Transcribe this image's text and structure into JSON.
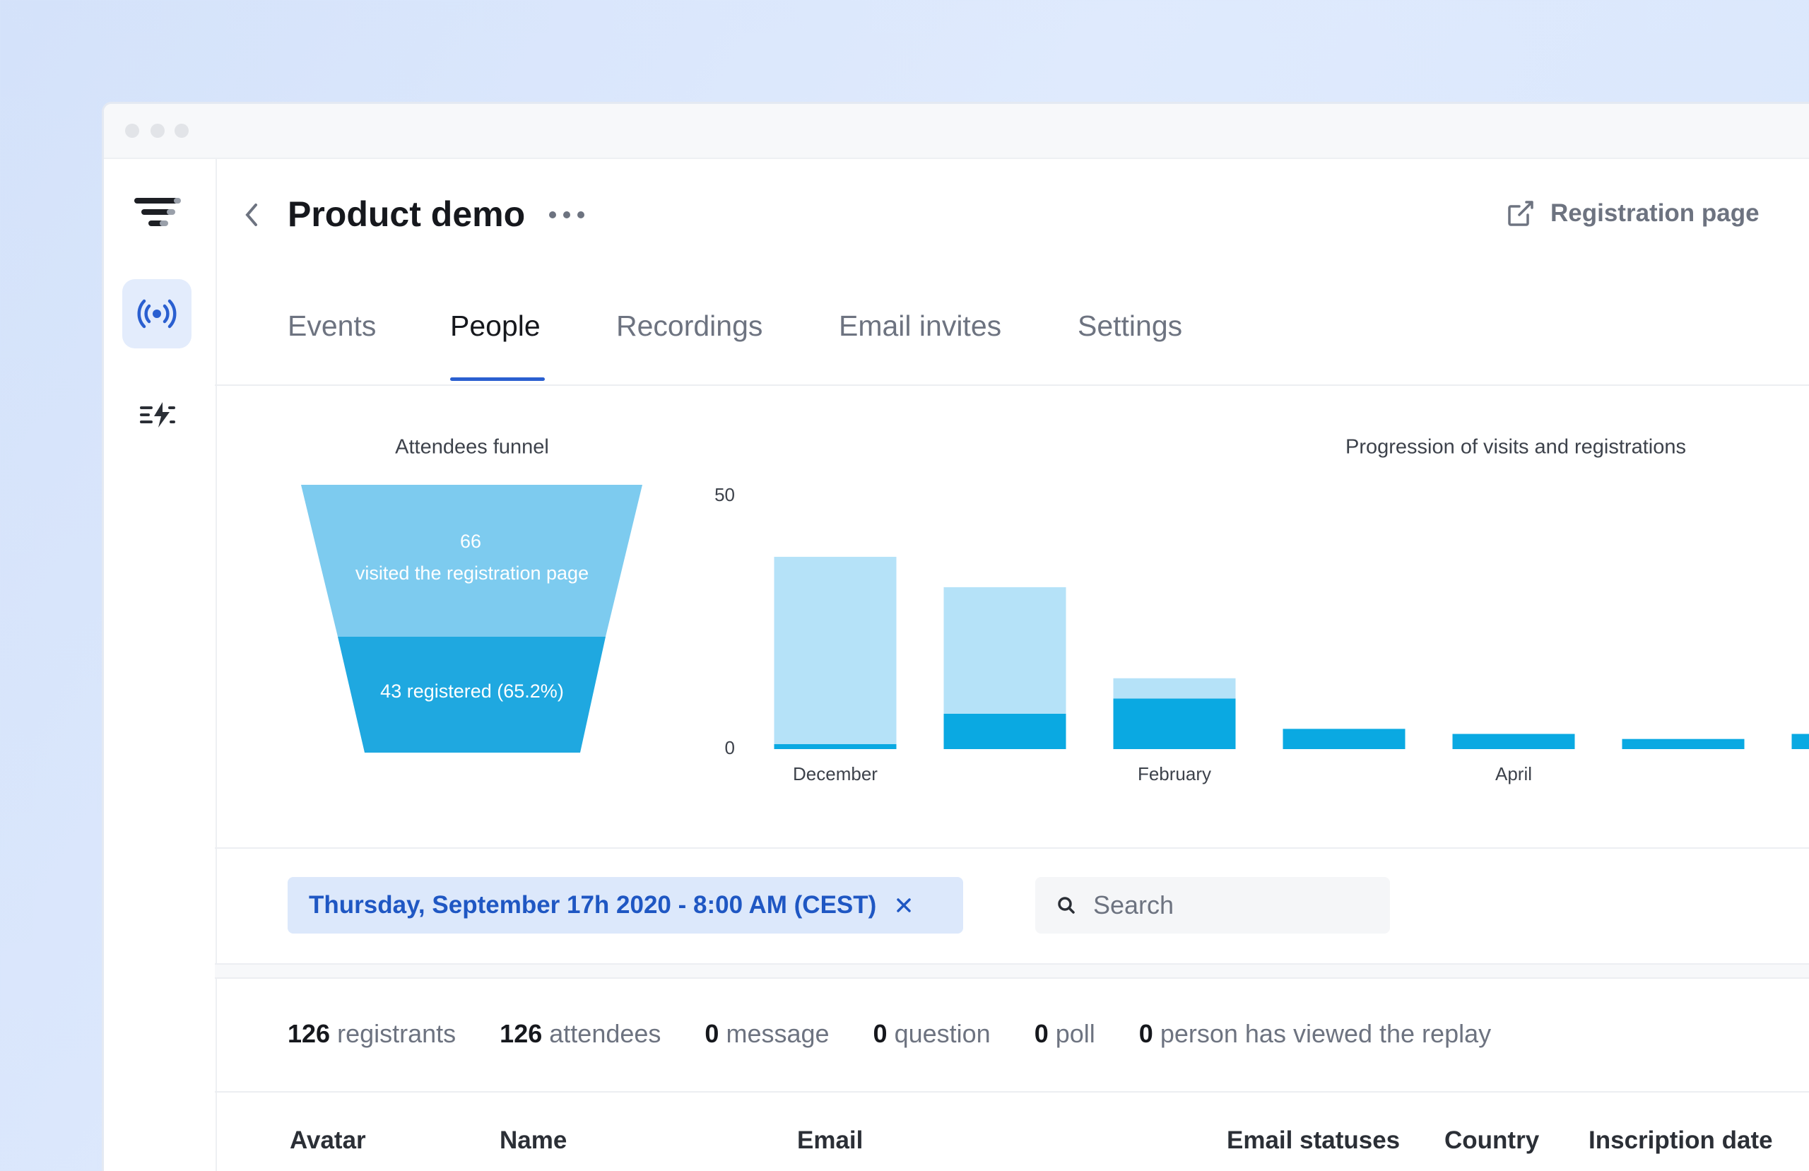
{
  "header": {
    "title": "Product demo",
    "link": "Registration page"
  },
  "tabs": [
    "Events",
    "People",
    "Recordings",
    "Email invites",
    "Settings"
  ],
  "funnel": {
    "title": "Attendees funnel",
    "stages": [
      {
        "value": 66,
        "label": "visited the registration page"
      },
      {
        "label": "43 registered (65.2%)"
      }
    ]
  },
  "chart_data": {
    "type": "bar",
    "stacked": true,
    "title": "Progression of visits and registrations",
    "categories": [
      "December",
      null,
      "February",
      null,
      "April",
      null,
      null
    ],
    "series": [
      {
        "color": "#0aa9e2",
        "values": [
          1,
          7,
          10,
          4,
          3,
          2,
          3
        ]
      },
      {
        "color": "#b5e2f8",
        "values": [
          37,
          25,
          4,
          0,
          0,
          0,
          0
        ]
      }
    ],
    "ylim": [
      0,
      50
    ],
    "yticks": [
      0,
      50
    ],
    "grid": false
  },
  "filter": {
    "date": "Thursday, September 17h 2020 - 8:00 AM (CEST)",
    "search": "Search"
  },
  "stats": [
    {
      "count": 126,
      "label": "registrants"
    },
    {
      "count": 126,
      "label": "attendees"
    },
    {
      "count": 0,
      "label": "message"
    },
    {
      "count": 0,
      "label": "question"
    },
    {
      "count": 0,
      "label": "poll"
    },
    {
      "count": 0,
      "label": "person has viewed the replay"
    }
  ],
  "table": {
    "columns": [
      "Avatar",
      "Name",
      "Email",
      "Email statuses",
      "Country",
      "Inscription date"
    ]
  }
}
